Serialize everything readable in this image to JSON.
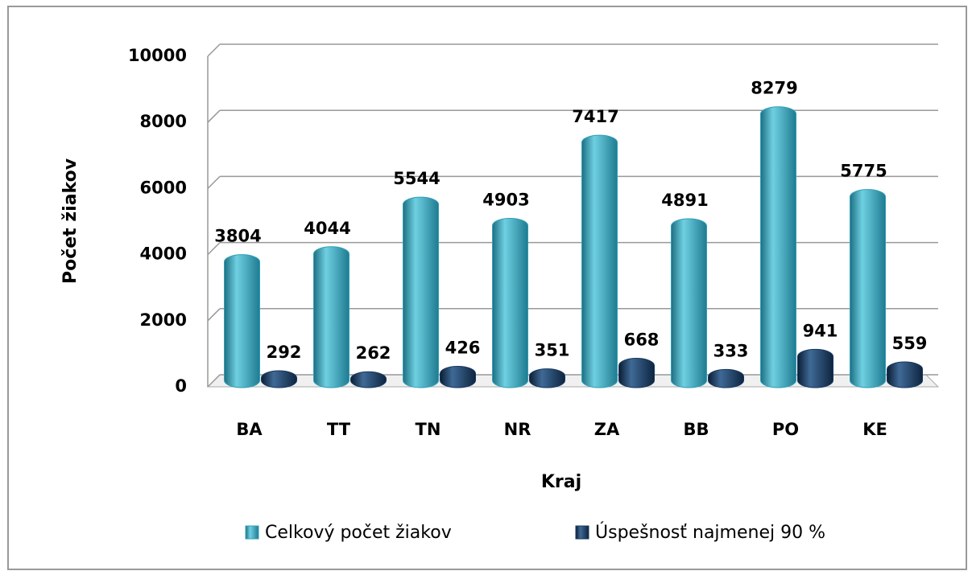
{
  "chart_data": {
    "type": "bar",
    "categories": [
      "BA",
      "TT",
      "TN",
      "NR",
      "ZA",
      "BB",
      "PO",
      "KE"
    ],
    "series": [
      {
        "name": "Celkový počet žiakov",
        "color": "#2f9fb6",
        "values": [
          3804,
          4044,
          5544,
          4903,
          7417,
          4891,
          8279,
          5775
        ]
      },
      {
        "name": "Úspešnosť najmenej 90 %",
        "color": "#17375e",
        "values": [
          292,
          262,
          426,
          351,
          668,
          333,
          941,
          559
        ]
      }
    ],
    "x_label": "Kraj",
    "y_label": "Počet žiakov",
    "ylim": [
      0,
      10000
    ],
    "yticks": [
      0,
      2000,
      4000,
      6000,
      8000,
      10000
    ],
    "grid": true,
    "legend": "bottom"
  }
}
